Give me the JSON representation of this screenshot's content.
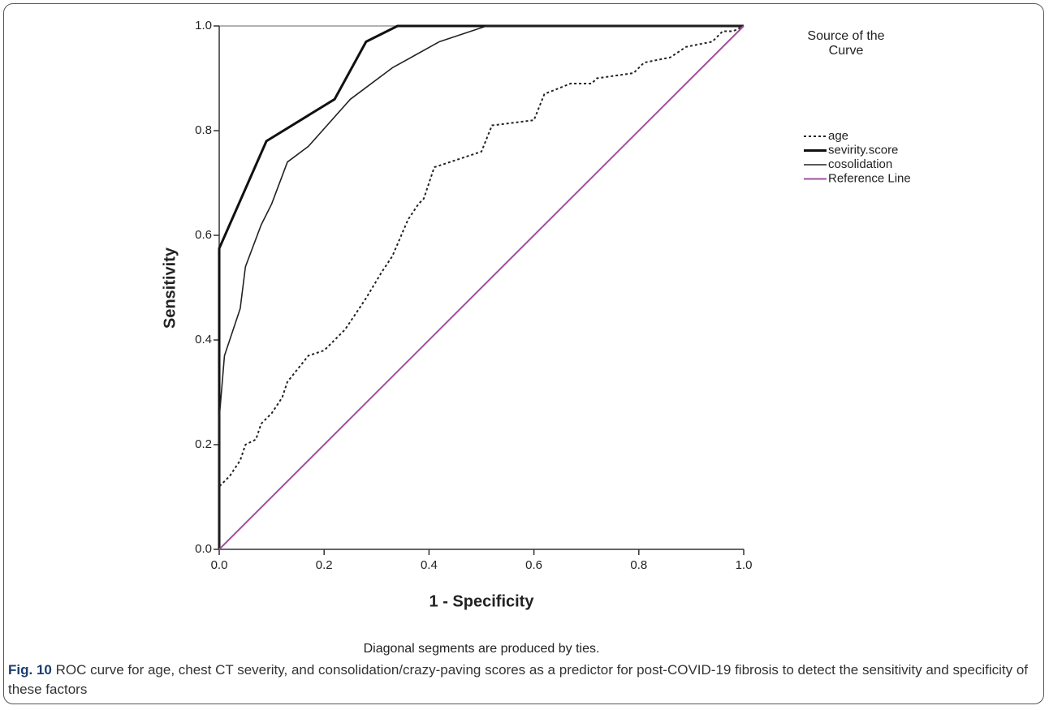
{
  "chart_data": {
    "type": "line",
    "xlabel": "1 - Specificity",
    "ylabel": "Sensitivity",
    "legend_title": "Source of the Curve",
    "legend_position": "right",
    "note": "Diagonal segments are produced by ties.",
    "caption": {
      "label": "Fig. 10",
      "text": "ROC curve for age, chest CT severity, and consolidation/crazy-paving scores as a predictor for post-COVID-19 fibrosis to detect the sensitivity and specificity of these factors"
    },
    "xlim": [
      0,
      1
    ],
    "ylim": [
      0,
      1
    ],
    "xticks": [
      {
        "value": 0,
        "label": "0.0"
      },
      0.2,
      0.4,
      0.6,
      0.8,
      {
        "value": 1,
        "label": "1.0"
      }
    ],
    "yticks": [
      {
        "value": 0,
        "label": "0.0"
      },
      0.2,
      0.4,
      0.6,
      0.8,
      {
        "value": 1,
        "label": "1.0"
      }
    ],
    "series": [
      {
        "name": "age",
        "color": "#222222",
        "width": 2,
        "dash": "dotted",
        "x": [
          0,
          0,
          0.02,
          0.04,
          0.05,
          0.07,
          0.08,
          0.1,
          0.12,
          0.13,
          0.17,
          0.2,
          0.24,
          0.26,
          0.28,
          0.31,
          0.33,
          0.36,
          0.38,
          0.39,
          0.41,
          0.5,
          0.52,
          0.6,
          0.62,
          0.67,
          0.71,
          0.72,
          0.79,
          0.81,
          0.86,
          0.89,
          0.94,
          0.96,
          0.98,
          1
        ],
        "values": [
          0,
          0.12,
          0.14,
          0.17,
          0.2,
          0.21,
          0.24,
          0.26,
          0.29,
          0.32,
          0.37,
          0.38,
          0.42,
          0.45,
          0.48,
          0.53,
          0.56,
          0.63,
          0.66,
          0.67,
          0.73,
          0.76,
          0.81,
          0.82,
          0.87,
          0.89,
          0.89,
          0.9,
          0.91,
          0.93,
          0.94,
          0.96,
          0.97,
          0.99,
          0.99,
          1
        ]
      },
      {
        "name": "sevirity.score",
        "color": "#111111",
        "width": 3,
        "dash": "solid",
        "x": [
          0,
          0,
          0.09,
          0.22,
          0.28,
          0.34,
          1
        ],
        "values": [
          0,
          0.575,
          0.78,
          0.86,
          0.97,
          1,
          1
        ]
      },
      {
        "name": "cosolidation",
        "color": "#222222",
        "width": 1.6,
        "dash": "solid",
        "x": [
          0,
          0,
          0.01,
          0.04,
          0.05,
          0.08,
          0.1,
          0.13,
          0.17,
          0.25,
          0.33,
          0.42,
          0.51,
          1
        ],
        "values": [
          0,
          0.25,
          0.37,
          0.46,
          0.54,
          0.62,
          0.66,
          0.74,
          0.77,
          0.86,
          0.92,
          0.97,
          1,
          1
        ]
      },
      {
        "name": "Reference Line",
        "color": "#a0509c",
        "width": 2,
        "dash": "solid",
        "x": [
          0,
          1
        ],
        "values": [
          0,
          1
        ]
      }
    ]
  }
}
